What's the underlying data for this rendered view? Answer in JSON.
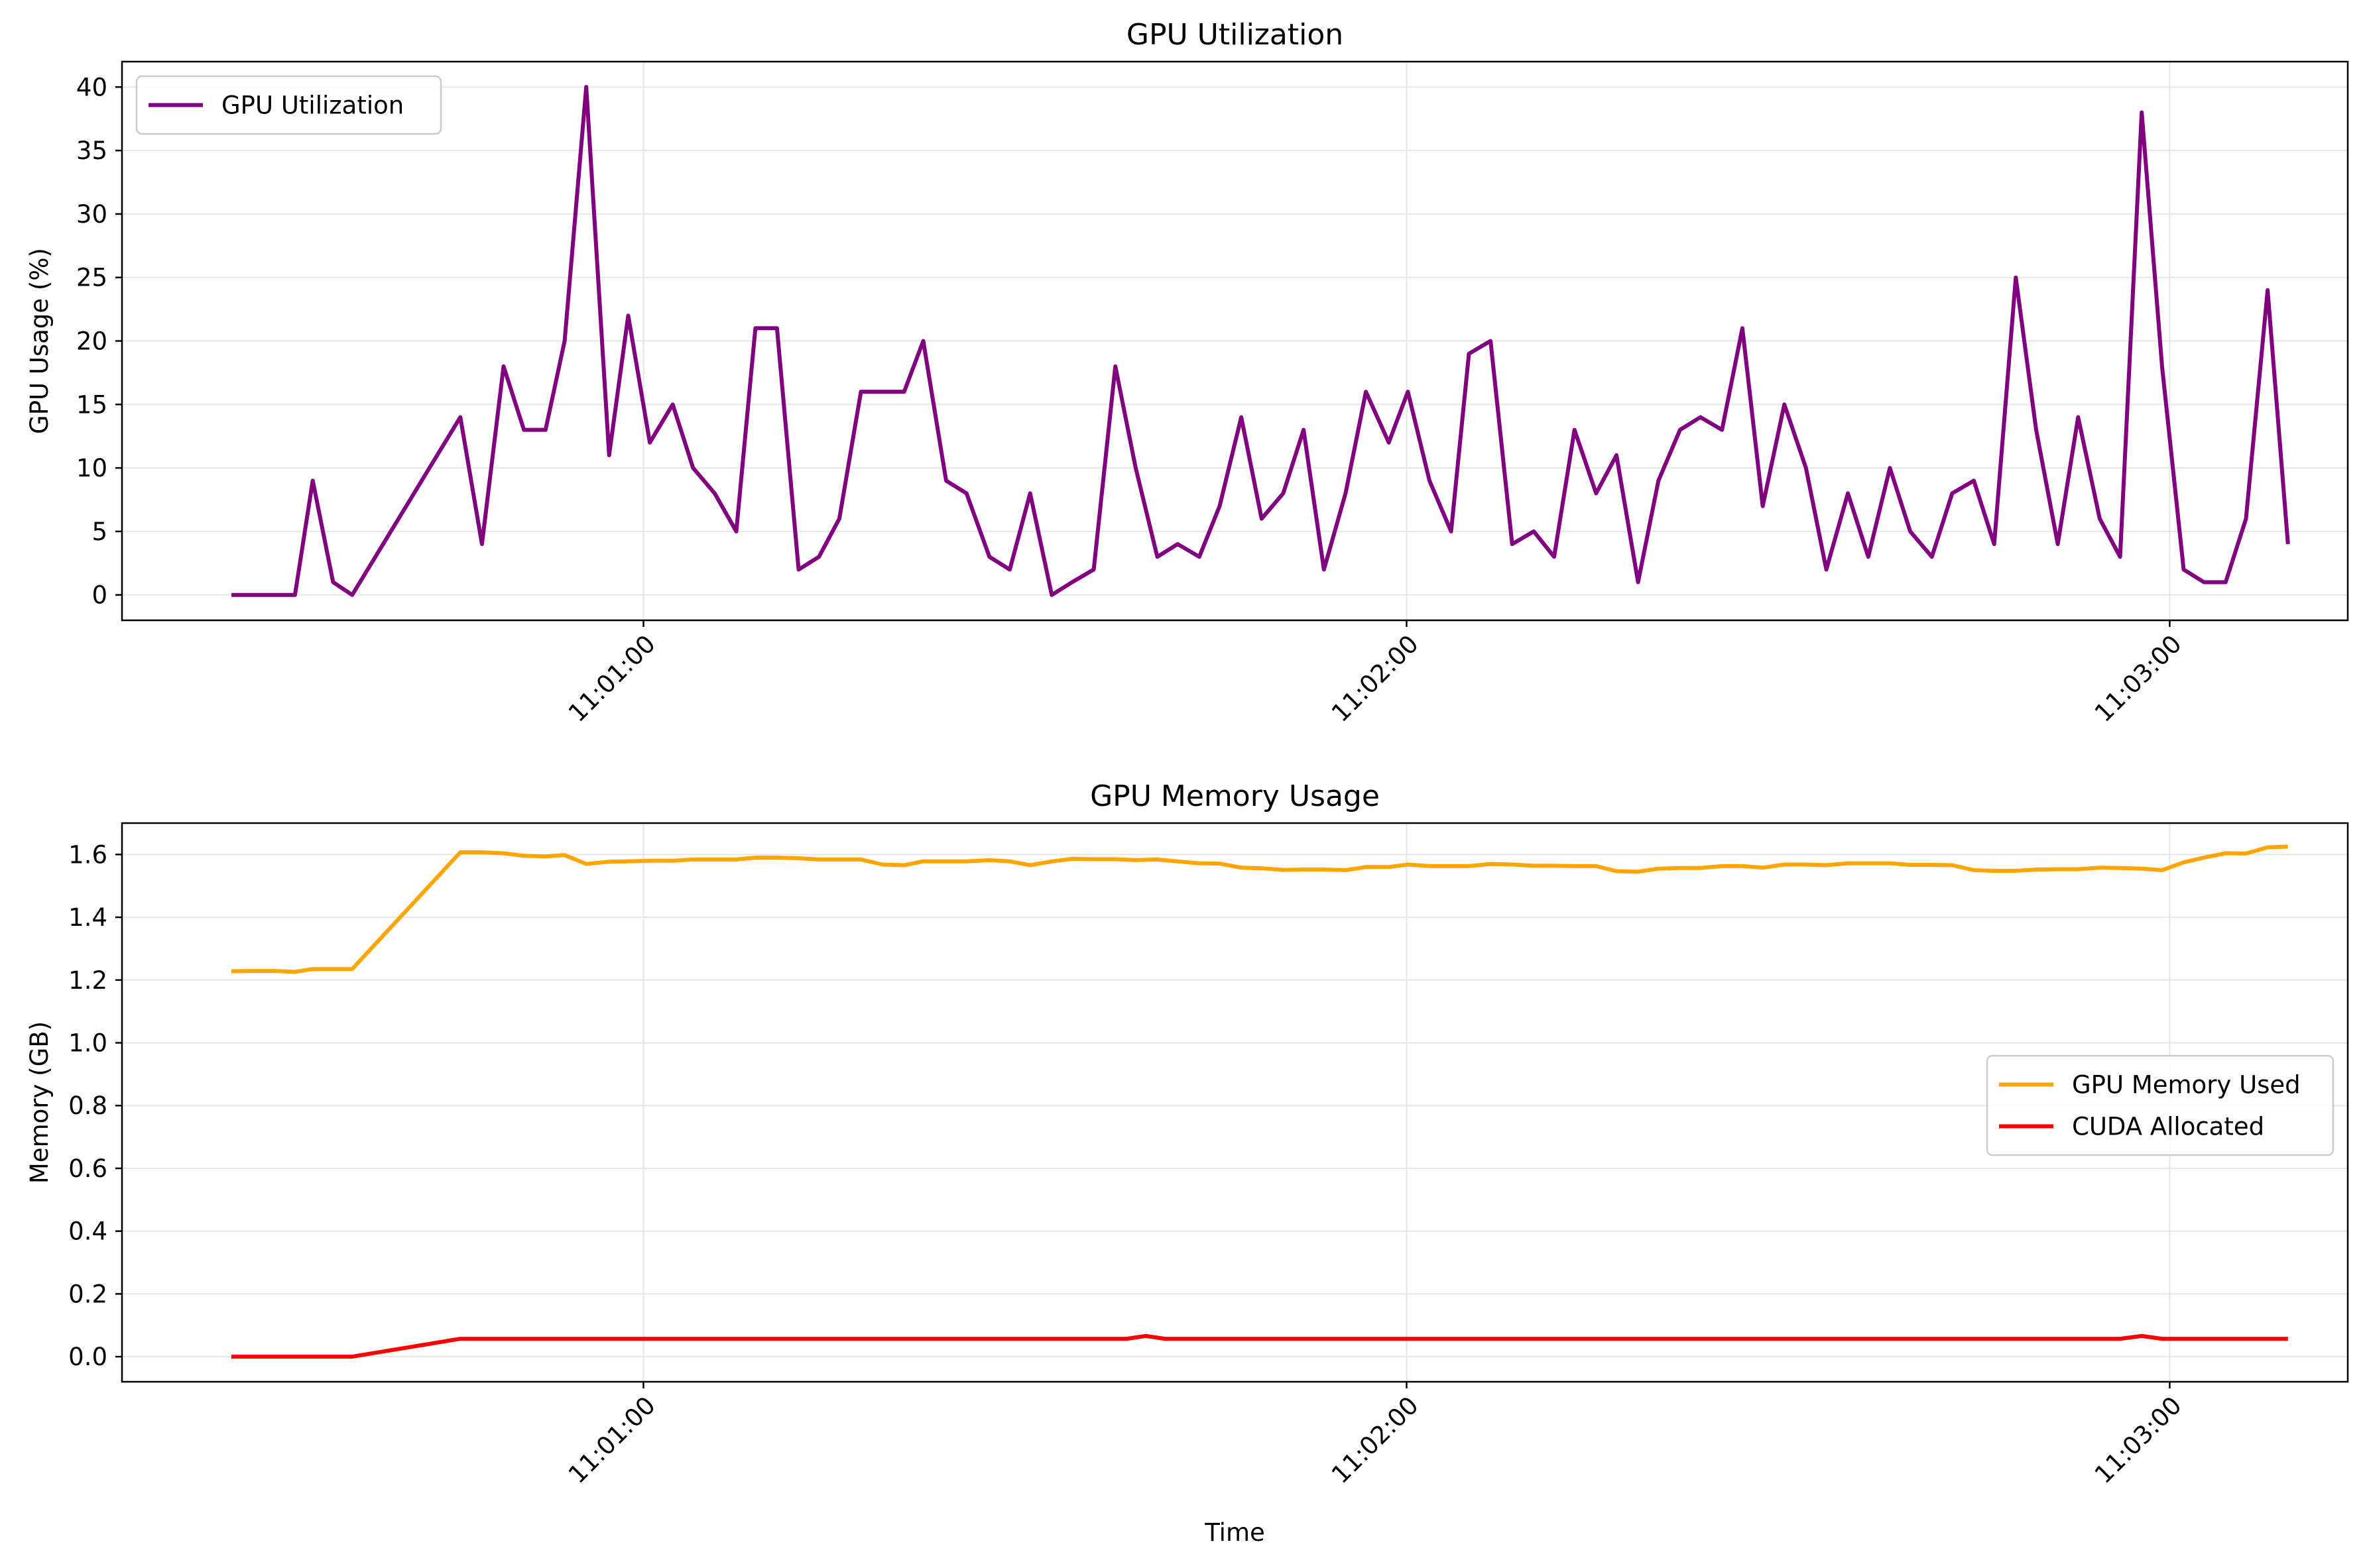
{
  "chart_data": [
    {
      "type": "line",
      "title": "GPU Utilization",
      "xlabel": "",
      "ylabel": "GPU Usage (%)",
      "ylim": [
        -2,
        42
      ],
      "yticks": [
        0,
        5,
        10,
        15,
        20,
        25,
        30,
        35,
        40
      ],
      "xlim": [
        "11:00:19",
        "11:03:14"
      ],
      "xticks": [
        "11:01:00",
        "11:02:00",
        "11:03:00"
      ],
      "grid": true,
      "legend_position": "upper-left",
      "series": [
        {
          "name": "GPU Utilization",
          "color": "#800080",
          "points": [
            [
              "11:00:27.6",
              0
            ],
            [
              "11:00:29.3",
              0
            ],
            [
              "11:00:31.0",
              0
            ],
            [
              "11:00:32.6",
              0
            ],
            [
              "11:00:34.0",
              9
            ],
            [
              "11:00:35.6",
              1
            ],
            [
              "11:00:37.1",
              0
            ],
            [
              "11:00:45.6",
              14
            ],
            [
              "11:00:47.3",
              4
            ],
            [
              "11:00:49.0",
              18
            ],
            [
              "11:00:50.6",
              13
            ],
            [
              "11:00:52.3",
              13
            ],
            [
              "11:00:53.8",
              20
            ],
            [
              "11:00:55.5",
              40
            ],
            [
              "11:00:57.3",
              11
            ],
            [
              "11:00:58.8",
              22
            ],
            [
              "11:01:00.5",
              12
            ],
            [
              "11:01:02.3",
              15
            ],
            [
              "11:01:03.9",
              10
            ],
            [
              "11:01:05.6",
              8
            ],
            [
              "11:01:07.3",
              5
            ],
            [
              "11:01:08.8",
              21
            ],
            [
              "11:01:10.5",
              21
            ],
            [
              "11:01:12.2",
              2
            ],
            [
              "11:01:13.8",
              3
            ],
            [
              "11:01:15.4",
              6
            ],
            [
              "11:01:17.1",
              16
            ],
            [
              "11:01:18.8",
              16
            ],
            [
              "11:01:20.5",
              16
            ],
            [
              "11:01:22.0",
              20
            ],
            [
              "11:01:23.8",
              9
            ],
            [
              "11:01:25.4",
              8
            ],
            [
              "11:01:27.2",
              3
            ],
            [
              "11:01:28.8",
              2
            ],
            [
              "11:01:30.4",
              8
            ],
            [
              "11:01:32.1",
              0
            ],
            [
              "11:01:33.7",
              1
            ],
            [
              "11:01:35.4",
              2
            ],
            [
              "11:01:37.1",
              18
            ],
            [
              "11:01:38.7",
              10
            ],
            [
              "11:01:40.4",
              3
            ],
            [
              "11:01:42.0",
              4
            ],
            [
              "11:01:43.7",
              3
            ],
            [
              "11:01:45.3",
              7
            ],
            [
              "11:01:47.0",
              14
            ],
            [
              "11:01:48.6",
              6
            ],
            [
              "11:01:50.3",
              8
            ],
            [
              "11:01:51.9",
              13
            ],
            [
              "11:01:53.5",
              2
            ],
            [
              "11:01:55.2",
              8
            ],
            [
              "11:01:56.8",
              16
            ],
            [
              "11:01:58.6",
              12
            ],
            [
              "11:02:00.1",
              16
            ],
            [
              "11:02:01.8",
              9
            ],
            [
              "11:02:03.5",
              5
            ],
            [
              "11:02:04.9",
              19
            ],
            [
              "11:02:06.6",
              20
            ],
            [
              "11:02:08.3",
              4
            ],
            [
              "11:02:10.0",
              5
            ],
            [
              "11:02:11.6",
              3
            ],
            [
              "11:02:13.2",
              13
            ],
            [
              "11:02:14.9",
              8
            ],
            [
              "11:02:16.5",
              11
            ],
            [
              "11:02:18.2",
              1
            ],
            [
              "11:02:19.8",
              9
            ],
            [
              "11:02:21.5",
              13
            ],
            [
              "11:02:23.1",
              14
            ],
            [
              "11:02:24.8",
              13
            ],
            [
              "11:02:26.4",
              21
            ],
            [
              "11:02:28.0",
              7
            ],
            [
              "11:02:29.7",
              15
            ],
            [
              "11:02:31.4",
              10
            ],
            [
              "11:02:33.0",
              2
            ],
            [
              "11:02:34.7",
              8
            ],
            [
              "11:02:36.3",
              3
            ],
            [
              "11:02:38.0",
              10
            ],
            [
              "11:02:39.6",
              5
            ],
            [
              "11:02:41.3",
              3
            ],
            [
              "11:02:42.9",
              8
            ],
            [
              "11:02:44.6",
              9
            ],
            [
              "11:02:46.2",
              4
            ],
            [
              "11:02:47.9",
              25
            ],
            [
              "11:02:49.5",
              13
            ],
            [
              "11:02:51.2",
              4
            ],
            [
              "11:02:52.8",
              14
            ],
            [
              "11:02:54.5",
              6
            ],
            [
              "11:02:56.1",
              3
            ],
            [
              "11:02:57.8",
              38
            ],
            [
              "11:02:59.4",
              18
            ],
            [
              "11:03:01.1",
              2
            ],
            [
              "11:03:02.7",
              1
            ],
            [
              "11:03:04.4",
              1
            ],
            [
              "11:03:06.0",
              6
            ],
            [
              "11:03:07.7",
              24
            ],
            [
              "11:03:09.3",
              4
            ]
          ]
        }
      ]
    },
    {
      "type": "line",
      "title": "GPU Memory Usage",
      "xlabel": "Time",
      "ylabel": "Memory (GB)",
      "ylim": [
        -0.08,
        1.7
      ],
      "yticks": [
        "0.0",
        "0.2",
        "0.4",
        "0.6",
        "0.8",
        "1.0",
        "1.2",
        "1.4",
        "1.6"
      ],
      "xlim": [
        "11:00:19",
        "11:03:14"
      ],
      "xticks": [
        "11:01:00",
        "11:02:00",
        "11:03:00"
      ],
      "grid": true,
      "legend_position": "center-right",
      "series": [
        {
          "name": "GPU Memory Used",
          "color": "#ffa500",
          "points": [
            [
              "11:00:27.6",
              1.228
            ],
            [
              "11:00:29.3",
              1.229
            ],
            [
              "11:00:31.0",
              1.229
            ],
            [
              "11:00:32.6",
              1.226
            ],
            [
              "11:00:34.0",
              1.235
            ],
            [
              "11:00:35.6",
              1.235
            ],
            [
              "11:00:37.1",
              1.235
            ],
            [
              "11:00:45.6",
              1.607
            ],
            [
              "11:00:47.3",
              1.607
            ],
            [
              "11:00:49.0",
              1.604
            ],
            [
              "11:00:50.6",
              1.596
            ],
            [
              "11:00:52.3",
              1.594
            ],
            [
              "11:00:53.8",
              1.598
            ],
            [
              "11:00:55.5",
              1.57
            ],
            [
              "11:00:57.3",
              1.577
            ],
            [
              "11:00:58.8",
              1.578
            ],
            [
              "11:01:00.5",
              1.58
            ],
            [
              "11:01:02.3",
              1.58
            ],
            [
              "11:01:03.9",
              1.584
            ],
            [
              "11:01:05.6",
              1.584
            ],
            [
              "11:01:07.3",
              1.584
            ],
            [
              "11:01:08.8",
              1.59
            ],
            [
              "11:01:10.5",
              1.59
            ],
            [
              "11:01:12.2",
              1.588
            ],
            [
              "11:01:13.8",
              1.584
            ],
            [
              "11:01:15.4",
              1.584
            ],
            [
              "11:01:17.1",
              1.584
            ],
            [
              "11:01:18.8",
              1.568
            ],
            [
              "11:01:20.5",
              1.566
            ],
            [
              "11:01:22.0",
              1.578
            ],
            [
              "11:01:23.8",
              1.578
            ],
            [
              "11:01:25.4",
              1.578
            ],
            [
              "11:01:27.2",
              1.582
            ],
            [
              "11:01:28.8",
              1.578
            ],
            [
              "11:01:30.4",
              1.566
            ],
            [
              "11:01:32.1",
              1.578
            ],
            [
              "11:01:33.7",
              1.586
            ],
            [
              "11:01:35.4",
              1.585
            ],
            [
              "11:01:37.1",
              1.585
            ],
            [
              "11:01:38.7",
              1.582
            ],
            [
              "11:01:40.4",
              1.584
            ],
            [
              "11:01:42.0",
              1.578
            ],
            [
              "11:01:43.7",
              1.572
            ],
            [
              "11:01:45.3",
              1.571
            ],
            [
              "11:01:47.0",
              1.558
            ],
            [
              "11:01:48.6",
              1.556
            ],
            [
              "11:01:50.3",
              1.551
            ],
            [
              "11:01:51.9",
              1.552
            ],
            [
              "11:01:53.5",
              1.552
            ],
            [
              "11:01:55.2",
              1.55
            ],
            [
              "11:01:56.8",
              1.56
            ],
            [
              "11:01:58.6",
              1.56
            ],
            [
              "11:02:00.1",
              1.568
            ],
            [
              "11:02:01.8",
              1.563
            ],
            [
              "11:02:03.5",
              1.563
            ],
            [
              "11:02:04.9",
              1.563
            ],
            [
              "11:02:06.6",
              1.57
            ],
            [
              "11:02:08.3",
              1.568
            ],
            [
              "11:02:10.0",
              1.564
            ],
            [
              "11:02:11.6",
              1.564
            ],
            [
              "11:02:13.2",
              1.563
            ],
            [
              "11:02:14.9",
              1.563
            ],
            [
              "11:02:16.5",
              1.547
            ],
            [
              "11:02:18.2",
              1.545
            ],
            [
              "11:02:19.8",
              1.555
            ],
            [
              "11:02:21.5",
              1.557
            ],
            [
              "11:02:23.1",
              1.557
            ],
            [
              "11:02:24.8",
              1.563
            ],
            [
              "11:02:26.4",
              1.563
            ],
            [
              "11:02:28.0",
              1.558
            ],
            [
              "11:02:29.7",
              1.568
            ],
            [
              "11:02:31.4",
              1.568
            ],
            [
              "11:02:33.0",
              1.566
            ],
            [
              "11:02:34.7",
              1.572
            ],
            [
              "11:02:36.3",
              1.572
            ],
            [
              "11:02:38.0",
              1.572
            ],
            [
              "11:02:39.6",
              1.567
            ],
            [
              "11:02:41.3",
              1.567
            ],
            [
              "11:02:42.9",
              1.566
            ],
            [
              "11:02:44.6",
              1.55
            ],
            [
              "11:02:46.2",
              1.548
            ],
            [
              "11:02:47.9",
              1.548
            ],
            [
              "11:02:49.5",
              1.552
            ],
            [
              "11:02:51.2",
              1.553
            ],
            [
              "11:02:52.8",
              1.553
            ],
            [
              "11:02:54.5",
              1.558
            ],
            [
              "11:02:56.1",
              1.557
            ],
            [
              "11:02:57.8",
              1.555
            ],
            [
              "11:02:59.4",
              1.55
            ],
            [
              "11:03:01.1",
              1.575
            ],
            [
              "11:03:02.7",
              1.59
            ],
            [
              "11:03:04.4",
              1.604
            ],
            [
              "11:03:06.0",
              1.603
            ],
            [
              "11:03:07.7",
              1.623
            ],
            [
              "11:03:09.3",
              1.625
            ]
          ]
        },
        {
          "name": "CUDA Allocated",
          "color": "#ff0000",
          "points": [
            [
              "11:00:27.6",
              0.0
            ],
            [
              "11:00:37.1",
              0.0
            ],
            [
              "11:00:45.6",
              0.057
            ],
            [
              "11:01:32.1",
              0.057
            ],
            [
              "11:01:38.0",
              0.057
            ],
            [
              "11:01:39.5",
              0.066
            ],
            [
              "11:01:41.0",
              0.057
            ],
            [
              "11:02:56.1",
              0.057
            ],
            [
              "11:02:57.8",
              0.066
            ],
            [
              "11:02:59.4",
              0.057
            ],
            [
              "11:03:09.3",
              0.057
            ]
          ]
        }
      ]
    }
  ]
}
